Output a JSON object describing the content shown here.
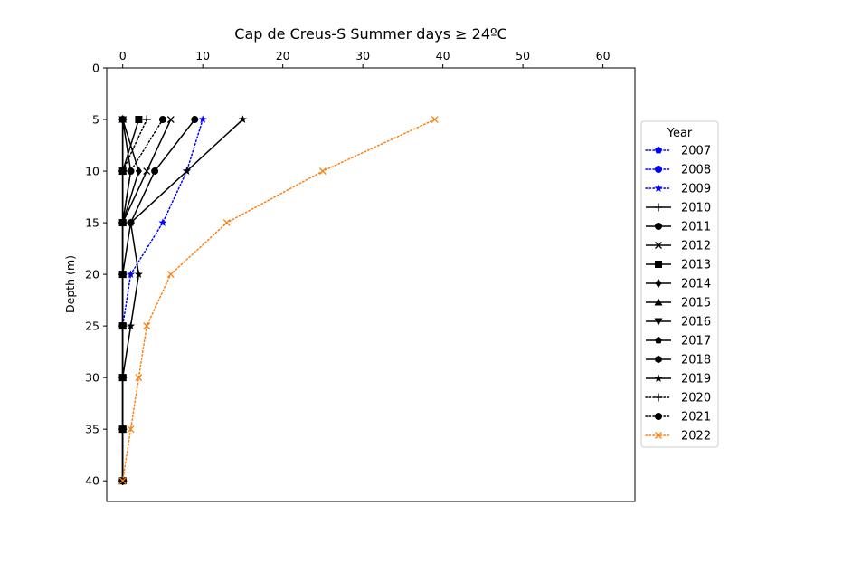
{
  "chart_data": {
    "type": "line",
    "title": "Cap de Creus-S Summer days ≥ 24ºC",
    "xlabel": "",
    "ylabel": "Depth (m)",
    "x_axis_position": "top",
    "y_inverted": true,
    "xlim": [
      -2,
      64
    ],
    "ylim": [
      0,
      42
    ],
    "xticks": [
      0,
      10,
      20,
      30,
      40,
      50,
      60
    ],
    "yticks": [
      0,
      5,
      10,
      15,
      20,
      25,
      30,
      35,
      40
    ],
    "grid": false,
    "legend": {
      "title": "Year",
      "placement": "right-outside"
    },
    "depths": [
      5,
      10,
      15,
      20,
      25,
      30,
      35,
      40
    ],
    "series": [
      {
        "name": "2007",
        "color": "#0000ff",
        "style": "dotted",
        "marker": "pentagon",
        "depths": [
          5,
          10,
          15,
          20,
          25,
          30,
          35,
          40
        ],
        "values": [
          0,
          0,
          0,
          0,
          0,
          0,
          0,
          0
        ]
      },
      {
        "name": "2008",
        "color": "#0000ff",
        "style": "dotted",
        "marker": "circle",
        "depths": [
          5,
          10,
          15,
          20,
          25,
          30,
          35,
          40
        ],
        "values": [
          0,
          0,
          0,
          0,
          0,
          0,
          0,
          0
        ]
      },
      {
        "name": "2009",
        "color": "#0000ff",
        "style": "dotted",
        "marker": "star",
        "depths": [
          5,
          10,
          15,
          20,
          25,
          30,
          35,
          40
        ],
        "values": [
          10,
          8,
          5,
          1,
          0,
          0,
          0,
          0
        ]
      },
      {
        "name": "2010",
        "color": "#000000",
        "style": "solid",
        "marker": "plus",
        "depths": [
          5,
          10,
          15,
          20,
          25,
          30,
          35,
          40
        ],
        "values": [
          0,
          0,
          0,
          0,
          0,
          0,
          0,
          0
        ]
      },
      {
        "name": "2011",
        "color": "#000000",
        "style": "solid",
        "marker": "circle",
        "depths": [
          5,
          10,
          15,
          20,
          25,
          30,
          35,
          40
        ],
        "values": [
          9,
          4,
          1,
          0,
          0,
          0,
          0,
          0
        ]
      },
      {
        "name": "2012",
        "color": "#000000",
        "style": "solid",
        "marker": "x",
        "depths": [
          5,
          10,
          15,
          20,
          25,
          30,
          35,
          40
        ],
        "values": [
          6,
          3,
          0,
          0,
          0,
          0,
          0,
          0
        ]
      },
      {
        "name": "2013",
        "color": "#000000",
        "style": "solid",
        "marker": "square",
        "depths": [
          5,
          10,
          15,
          20,
          25,
          30,
          35,
          40
        ],
        "values": [
          2,
          0,
          0,
          0,
          0,
          0,
          0,
          0
        ]
      },
      {
        "name": "2014",
        "color": "#000000",
        "style": "solid",
        "marker": "diamond",
        "depths": [
          5,
          10,
          15,
          20,
          25,
          30,
          35,
          40
        ],
        "values": [
          0,
          2,
          0,
          0,
          0,
          0,
          0,
          0
        ]
      },
      {
        "name": "2015",
        "color": "#000000",
        "style": "solid",
        "marker": "triangle-up",
        "depths": [
          5,
          10,
          15,
          20,
          25,
          30,
          35,
          40
        ],
        "values": [
          0,
          0,
          0,
          0,
          0,
          0,
          0,
          0
        ]
      },
      {
        "name": "2016",
        "color": "#000000",
        "style": "solid",
        "marker": "triangle-down",
        "depths": [
          5,
          10,
          15,
          20,
          25,
          30,
          35,
          40
        ],
        "values": [
          0,
          0,
          0,
          0,
          0,
          0,
          0,
          0
        ]
      },
      {
        "name": "2017",
        "color": "#000000",
        "style": "solid",
        "marker": "pentagon",
        "depths": [
          5,
          10,
          15,
          20,
          25,
          30,
          35,
          40
        ],
        "values": [
          0,
          1,
          0,
          0,
          0,
          0,
          0,
          0
        ]
      },
      {
        "name": "2018",
        "color": "#000000",
        "style": "solid",
        "marker": "hexagon",
        "depths": [
          5,
          10,
          15,
          20,
          25,
          30,
          35,
          40
        ],
        "values": [
          0,
          0,
          0,
          0,
          0,
          0,
          0,
          0
        ]
      },
      {
        "name": "2019",
        "color": "#000000",
        "style": "solid",
        "marker": "star",
        "depths": [
          5,
          10,
          15,
          20,
          25,
          30,
          35,
          40
        ],
        "values": [
          15,
          8,
          1,
          2,
          1,
          0,
          0,
          0
        ]
      },
      {
        "name": "2020",
        "color": "#000000",
        "style": "dotted",
        "marker": "plus",
        "depths": [
          5,
          10,
          15,
          20,
          25,
          30,
          35,
          40
        ],
        "values": [
          3,
          0,
          0,
          0,
          0,
          0,
          0,
          0
        ]
      },
      {
        "name": "2021",
        "color": "#000000",
        "style": "dotted",
        "marker": "circle",
        "depths": [
          5,
          10,
          15,
          20,
          25,
          30,
          35,
          40
        ],
        "values": [
          5,
          1,
          0,
          0,
          0,
          0,
          0,
          0
        ]
      },
      {
        "name": "2022",
        "color": "#ff7f0e",
        "style": "dotted",
        "marker": "x",
        "depths": [
          5,
          10,
          15,
          20,
          25,
          30,
          35,
          40
        ],
        "values": [
          39,
          25,
          13,
          6,
          3,
          2,
          1,
          0
        ]
      }
    ]
  }
}
